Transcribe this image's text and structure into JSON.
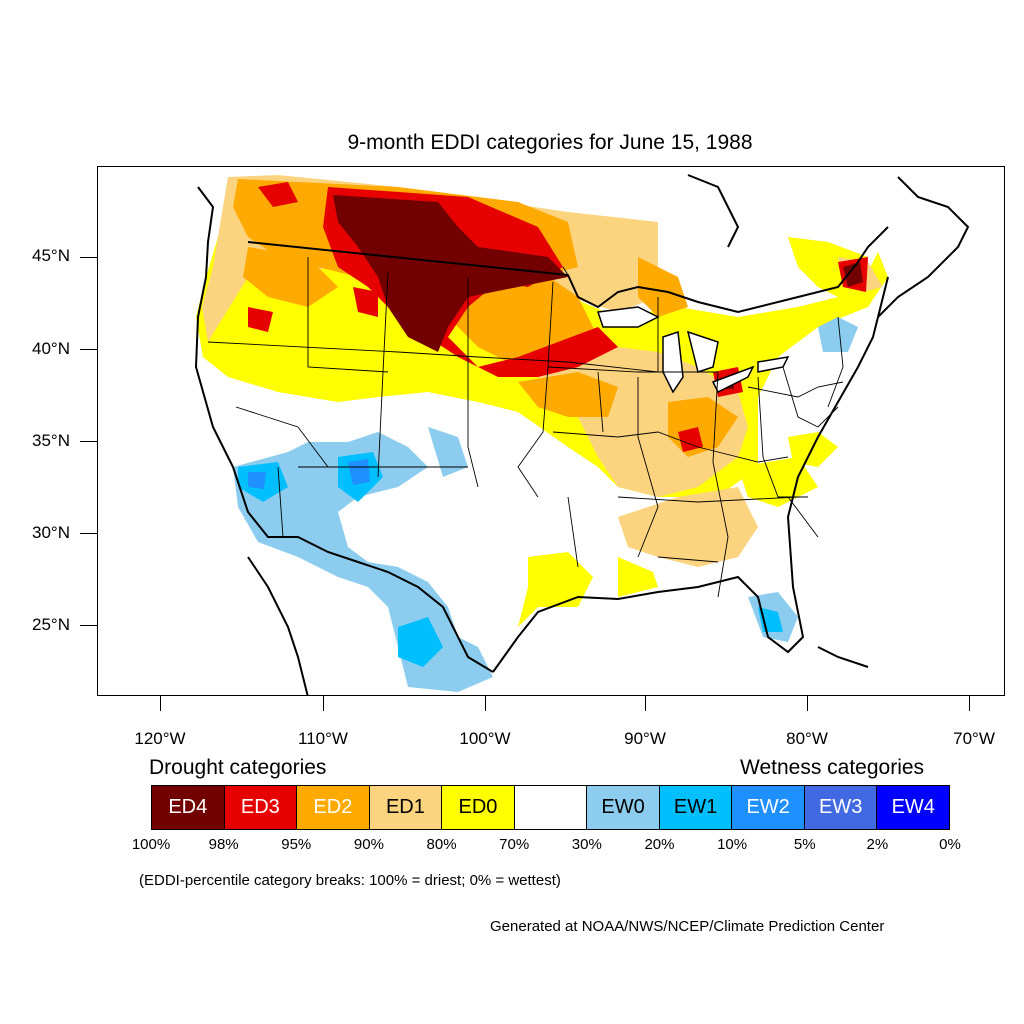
{
  "title": "9-month EDDI categories for June 15, 1988",
  "map": {
    "lat_labels": [
      "45°N",
      "40°N",
      "35°N",
      "30°N",
      "25°N"
    ],
    "lon_labels": [
      "120°W",
      "110°W",
      "100°W",
      "90°W",
      "80°W",
      "70°W"
    ],
    "region": "Contiguous United States"
  },
  "legend": {
    "drought_heading": "Drought categories",
    "wetness_heading": "Wetness categories",
    "categories": [
      {
        "label": "ED4",
        "color": "#730000",
        "text_color": "#ffffff"
      },
      {
        "label": "ED3",
        "color": "#e60000",
        "text_color": "#ffffff"
      },
      {
        "label": "ED2",
        "color": "#ffaa00",
        "text_color": "#ffffff"
      },
      {
        "label": "ED1",
        "color": "#fcd37f",
        "text_color": "#000000"
      },
      {
        "label": "ED0",
        "color": "#ffff00",
        "text_color": "#000000"
      },
      {
        "label": "",
        "color": "#ffffff",
        "text_color": "#000000"
      },
      {
        "label": "EW0",
        "color": "#8ccdef",
        "text_color": "#000000"
      },
      {
        "label": "EW1",
        "color": "#00bfff",
        "text_color": "#000000"
      },
      {
        "label": "EW2",
        "color": "#1e90ff",
        "text_color": "#ffffff"
      },
      {
        "label": "EW3",
        "color": "#4169e1",
        "text_color": "#ffffff"
      },
      {
        "label": "EW4",
        "color": "#0000ff",
        "text_color": "#ffffff"
      }
    ],
    "breaks": [
      "100%",
      "98%",
      "95%",
      "90%",
      "80%",
      "70%",
      "30%",
      "20%",
      "10%",
      "5%",
      "2%",
      "0%"
    ]
  },
  "note": "(EDDI-percentile category breaks: 100% = driest; 0% = wettest)",
  "credit": "Generated at NOAA/NWS/NCEP/Climate Prediction Center"
}
